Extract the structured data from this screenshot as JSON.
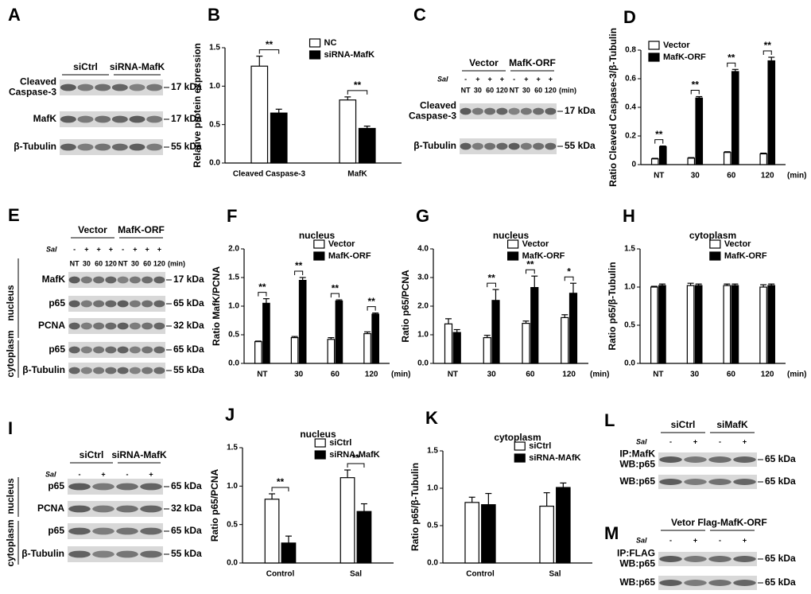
{
  "chart_data": [
    {
      "panel": "B",
      "type": "bar",
      "y_label": "Relative protein expression",
      "categories": [
        "Cleaved Caspase-3",
        "MafK"
      ],
      "series": [
        {
          "name": "NC",
          "color": "#ffffff",
          "values": [
            1.26,
            0.82
          ],
          "errors": [
            0.13,
            0.04
          ]
        },
        {
          "name": "siRNA-MafK",
          "color": "#000000",
          "values": [
            0.65,
            0.45
          ],
          "errors": [
            0.05,
            0.03
          ]
        }
      ],
      "significance": [
        "**",
        "**"
      ],
      "ylim": [
        0,
        1.5
      ],
      "yticks": [
        {
          "value": 0,
          "label": "0.0"
        },
        {
          "value": 0.5,
          "label": "0.5"
        },
        {
          "value": 1,
          "label": "1.0"
        },
        {
          "value": 1.5,
          "label": "1.5"
        }
      ],
      "legend": "upper right"
    },
    {
      "panel": "D",
      "type": "bar",
      "y_label": "Ratio Cleaved Caspase-3/β-Tubulin",
      "x_unit": "(min)",
      "categories": [
        "NT",
        "30",
        "60",
        "120"
      ],
      "series": [
        {
          "name": "Vector",
          "color": "#ffffff",
          "values": [
            0.04,
            0.045,
            0.085,
            0.075
          ],
          "errors": [
            0.004,
            0.004,
            0.005,
            0.005
          ]
        },
        {
          "name": "MafK-ORF",
          "color": "#000000",
          "values": [
            0.125,
            0.465,
            0.65,
            0.725
          ],
          "errors": [
            0.005,
            0.01,
            0.015,
            0.025
          ]
        }
      ],
      "significance": [
        "**",
        "**",
        "**",
        "**"
      ],
      "ylim": [
        0,
        0.8
      ],
      "yticks": [
        0,
        0.2,
        0.4,
        0.6,
        0.8
      ],
      "legend": "upper left"
    },
    {
      "panel": "F",
      "type": "bar",
      "title": "nucleus",
      "y_label": "Ratio MafK/PCNA",
      "x_unit": "(min)",
      "categories": [
        "NT",
        "30",
        "60",
        "120"
      ],
      "series": [
        {
          "name": "Vector",
          "color": "#ffffff",
          "values": [
            0.38,
            0.45,
            0.42,
            0.52
          ],
          "errors": [
            0.01,
            0.02,
            0.03,
            0.03
          ]
        },
        {
          "name": "MafK-ORF",
          "color": "#000000",
          "values": [
            1.05,
            1.45,
            1.09,
            0.86
          ],
          "errors": [
            0.08,
            0.05,
            0.02,
            0.02
          ]
        }
      ],
      "significance": [
        "**",
        "**",
        "**",
        "**"
      ],
      "ylim": [
        0,
        2
      ],
      "yticks": [
        {
          "value": 0,
          "label": "0.0"
        },
        {
          "value": 0.5,
          "label": "0.5"
        },
        {
          "value": 1,
          "label": "1.0"
        },
        {
          "value": 1.5,
          "label": "1.5"
        },
        {
          "value": 2,
          "label": "2.0"
        }
      ],
      "legend": "upper right"
    },
    {
      "panel": "G",
      "type": "bar",
      "title": "nucleus",
      "y_label": "Ratio p65/PCNA",
      "x_unit": "(min)",
      "categories": [
        "NT",
        "30",
        "60",
        "120"
      ],
      "series": [
        {
          "name": "Vector",
          "color": "#ffffff",
          "values": [
            1.38,
            0.9,
            1.4,
            1.6
          ],
          "errors": [
            0.18,
            0.08,
            0.08,
            0.1
          ]
        },
        {
          "name": "MafK-ORF",
          "color": "#000000",
          "values": [
            1.08,
            2.2,
            2.65,
            2.45
          ],
          "errors": [
            0.1,
            0.38,
            0.4,
            0.35
          ]
        }
      ],
      "significance": [
        null,
        "**",
        "**",
        "*"
      ],
      "ylim": [
        0,
        4
      ],
      "yticks": [
        {
          "value": 0,
          "label": "0.0"
        },
        {
          "value": 1,
          "label": "1.0"
        },
        {
          "value": 2,
          "label": "2.0"
        },
        {
          "value": 3,
          "label": "3.0"
        },
        {
          "value": 4,
          "label": "4.0"
        }
      ],
      "legend": "upper right"
    },
    {
      "panel": "H",
      "type": "bar",
      "title": "cytoplasm",
      "y_label": "Ratio p65/β-Tubulin",
      "x_unit": "(min)",
      "categories": [
        "NT",
        "30",
        "60",
        "120"
      ],
      "series": [
        {
          "name": "Vector",
          "color": "#ffffff",
          "values": [
            1.0,
            1.02,
            1.02,
            1.0
          ],
          "errors": [
            0.01,
            0.03,
            0.02,
            0.03
          ]
        },
        {
          "name": "MafK-ORF",
          "color": "#000000",
          "values": [
            1.02,
            1.02,
            1.02,
            1.02
          ],
          "errors": [
            0.02,
            0.02,
            0.02,
            0.02
          ]
        }
      ],
      "ylim": [
        0,
        1.5
      ],
      "yticks": [
        {
          "value": 0,
          "label": "0.0"
        },
        {
          "value": 0.5,
          "label": "0.5"
        },
        {
          "value": 1,
          "label": "1.0"
        },
        {
          "value": 1.5,
          "label": "1.5"
        }
      ],
      "legend": "upper right"
    },
    {
      "panel": "J",
      "type": "bar",
      "title": "nucleus",
      "y_label": "Ratio p65/PCNA",
      "categories": [
        "Control",
        "Sal"
      ],
      "series": [
        {
          "name": "siCtrl",
          "color": "#ffffff",
          "values": [
            0.83,
            1.11
          ],
          "errors": [
            0.07,
            0.1
          ]
        },
        {
          "name": "siRNA-MafK",
          "color": "#000000",
          "values": [
            0.26,
            0.67
          ],
          "errors": [
            0.09,
            0.1
          ]
        }
      ],
      "significance": [
        "**",
        "**"
      ],
      "ylim": [
        0,
        1.5
      ],
      "yticks": [
        {
          "value": 0,
          "label": "0.0"
        },
        {
          "value": 0.5,
          "label": "0.5"
        },
        {
          "value": 1,
          "label": "1.0"
        },
        {
          "value": 1.5,
          "label": "1.5"
        }
      ],
      "legend": "upper right"
    },
    {
      "panel": "K",
      "type": "bar",
      "title": "cytoplasm",
      "y_label": "Ratio p65/β-Tubulin",
      "categories": [
        "Control",
        "Sal"
      ],
      "series": [
        {
          "name": "siCtrl",
          "color": "#ffffff",
          "values": [
            0.81,
            0.76
          ],
          "errors": [
            0.07,
            0.18
          ]
        },
        {
          "name": "siRNA-MAfK",
          "color": "#000000",
          "values": [
            0.78,
            1.01
          ],
          "errors": [
            0.15,
            0.06
          ]
        }
      ],
      "ylim": [
        0,
        1.5
      ],
      "yticks": [
        {
          "value": 0,
          "label": "0.0"
        },
        {
          "value": 0.5,
          "label": "0.5"
        },
        {
          "value": 1,
          "label": "1.0"
        },
        {
          "value": 1.5,
          "label": "1.5"
        }
      ],
      "legend": "upper right"
    }
  ],
  "blots": [
    {
      "panel": "A",
      "groups": [
        "siCtrl",
        "siRNA-MafK"
      ],
      "rows": [
        {
          "label": [
            "Cleaved",
            "Caspase-3"
          ],
          "size": "17 kDa"
        },
        {
          "label": [
            "MafK"
          ],
          "size": "17 kDa"
        },
        {
          "label": [
            "β-Tubulin"
          ],
          "size": "55 kDa"
        }
      ]
    },
    {
      "panel": "C",
      "groups": [
        "Vector",
        "MafK-ORF"
      ],
      "treatment": "Sal",
      "signs": [
        "-",
        "+",
        "+",
        "+",
        "-",
        "+",
        "+",
        "+"
      ],
      "times": [
        "NT",
        "30",
        "60",
        "120",
        "NT",
        "30",
        "60",
        "120"
      ],
      "time_unit": "(min)",
      "rows": [
        {
          "label": [
            "Cleaved",
            "Caspase-3"
          ],
          "size": "17 kDa"
        },
        {
          "label": [
            "β-Tubulin"
          ],
          "size": "55 kDa"
        }
      ]
    },
    {
      "panel": "E",
      "groups": [
        "Vector",
        "MafK-ORF"
      ],
      "treatment": "Sal",
      "signs": [
        "-",
        "+",
        "+",
        "+",
        "-",
        "+",
        "+",
        "+"
      ],
      "times": [
        "NT",
        "30",
        "60",
        "120",
        "NT",
        "30",
        "60",
        "120"
      ],
      "time_unit": "(min)",
      "rows": [
        {
          "label": [
            "MafK"
          ],
          "size": "17 kDa"
        },
        {
          "label": [
            "p65"
          ],
          "size": "65 kDa"
        },
        {
          "label": [
            "PCNA"
          ],
          "size": "32 kDa"
        },
        {
          "label": [
            "p65"
          ],
          "size": "65 kDa"
        },
        {
          "label": [
            "β-Tubulin"
          ],
          "size": "55 kDa"
        }
      ],
      "side_labels": [
        "nucleus",
        "cytoplasm"
      ]
    },
    {
      "panel": "I",
      "groups": [
        "siCtrl",
        "siRNA-MafK"
      ],
      "treatment": "Sal",
      "signs": [
        "-",
        "+",
        "-",
        "+"
      ],
      "rows": [
        {
          "label": [
            "p65"
          ],
          "size": "65 kDa"
        },
        {
          "label": [
            "PCNA"
          ],
          "size": "32 kDa"
        },
        {
          "label": [
            "p65"
          ],
          "size": "65 kDa"
        },
        {
          "label": [
            "β-Tubulin"
          ],
          "size": "55 kDa"
        }
      ],
      "side_labels": [
        "nucleus",
        "cytoplasm"
      ]
    },
    {
      "panel": "L",
      "groups": [
        "siCtrl",
        "siMafK"
      ],
      "treatment": "Sal",
      "signs": [
        "-",
        "+",
        "-",
        "+"
      ],
      "rows": [
        {
          "label": [
            "IP:MafK",
            "WB:p65"
          ],
          "size": "65 kDa"
        },
        {
          "label": [
            "WB:p65"
          ],
          "size": "65 kDa"
        }
      ]
    },
    {
      "panel": "M",
      "groups": [
        "Vetor",
        "Flag-MafK-ORF"
      ],
      "treatment": "Sal",
      "signs": [
        "-",
        "+",
        "-",
        "+"
      ],
      "rows": [
        {
          "label": [
            "IP:FLAG",
            "WB:p65"
          ],
          "size": "65 kDa"
        },
        {
          "label": [
            "WB:p65"
          ],
          "size": "65 kDa"
        }
      ]
    }
  ]
}
